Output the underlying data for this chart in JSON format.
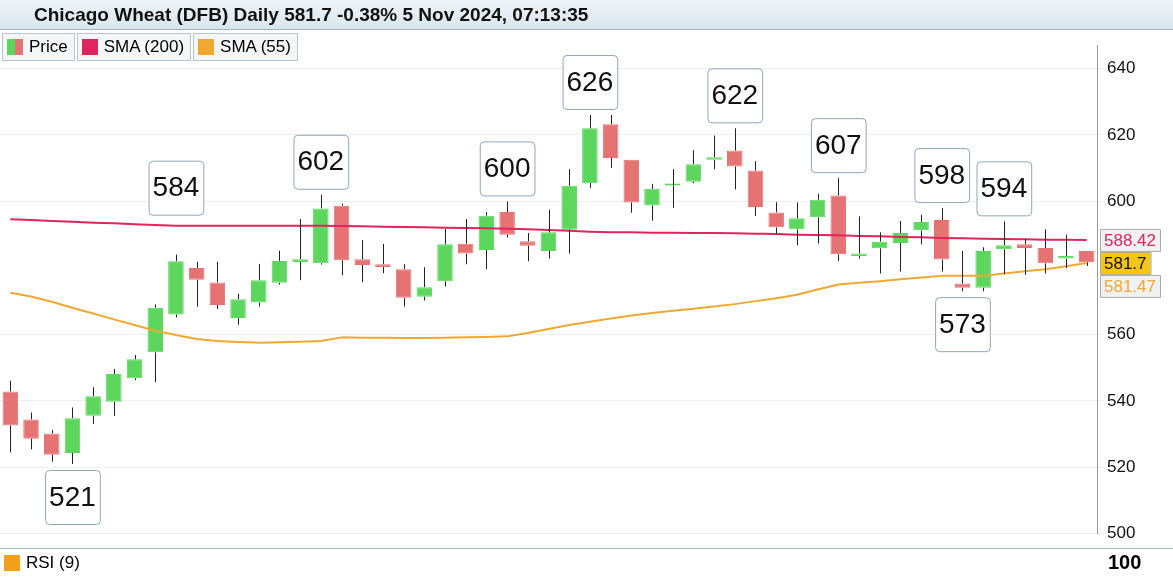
{
  "chart_data": {
    "type": "candlestick",
    "title": "Chicago Wheat (DFB) Daily 581.7 -0.38% 5 Nov 2024, 07:13:35",
    "categories": [
      null,
      null,
      null,
      null,
      null,
      null,
      null,
      null,
      null,
      null,
      null,
      null,
      null,
      null,
      null,
      null,
      null,
      null,
      null,
      null,
      null,
      null,
      null,
      null,
      null,
      null,
      null,
      null,
      null,
      null,
      null,
      null,
      null,
      null,
      null,
      null,
      null,
      null,
      null,
      null,
      null,
      null,
      null,
      null,
      null,
      null,
      null,
      null,
      null,
      null,
      null,
      null,
      null
    ],
    "series": [
      {
        "name": "Price",
        "value_labels": [
          null,
          null,
          null,
          null,
          null,
          null,
          null,
          null,
          null,
          null,
          null,
          null,
          null,
          null,
          null,
          null,
          null,
          null,
          null,
          null,
          null,
          null,
          null,
          null,
          null,
          null,
          null,
          null,
          null,
          null,
          null,
          null,
          null,
          null,
          null,
          null,
          null,
          null,
          null,
          null,
          null,
          null,
          null,
          null,
          null,
          null,
          null,
          null,
          null,
          null,
          null,
          null,
          "581.7"
        ],
        "ohlc": [
          [
            542.8,
            546.0,
            524.5,
            532.6
          ],
          [
            534.4,
            536.5,
            525.4,
            528.6
          ],
          [
            530.2,
            531.2,
            521.7,
            523.8
          ],
          [
            524.3,
            538.0,
            521,
            534.8
          ],
          [
            535.5,
            544.1,
            533.1,
            541.4
          ],
          [
            539.7,
            549.6,
            535.5,
            548.1
          ],
          [
            546.8,
            553.8,
            546.2,
            552.5
          ],
          [
            554.6,
            569.0,
            545.6,
            568.0
          ],
          [
            566.0,
            584,
            565.1,
            582.0
          ],
          [
            580.0,
            581.8,
            568.3,
            576.4
          ],
          [
            575.6,
            581.8,
            567.6,
            568.8
          ],
          [
            564.9,
            572.2,
            562.9,
            570.6
          ],
          [
            569.6,
            581.2,
            568.4,
            576.3
          ],
          [
            575.5,
            585.2,
            575,
            582.1
          ],
          [
            581.8,
            594.7,
            576.3,
            582.6
          ],
          [
            581.4,
            602,
            581,
            597.9
          ],
          [
            598.7,
            599.3,
            577.8,
            582.3
          ],
          [
            582.6,
            588.4,
            575.7,
            580.9
          ],
          [
            581.1,
            587.2,
            578.4,
            580.3
          ],
          [
            579.6,
            581.1,
            568.4,
            571.0
          ],
          [
            571.3,
            580.2,
            570.2,
            574.2
          ],
          [
            576.0,
            591.7,
            574.4,
            587.1
          ],
          [
            587.3,
            594.7,
            581.1,
            584.3
          ],
          [
            585.4,
            596.8,
            579.6,
            595.7
          ],
          [
            596.8,
            600,
            589.1,
            590.0
          ],
          [
            588.0,
            590.5,
            582.0,
            586.7
          ],
          [
            585.1,
            597.5,
            582.8,
            590.7
          ],
          [
            591.5,
            609.7,
            584.3,
            604.7
          ],
          [
            605.5,
            626,
            604.1,
            622.0
          ],
          [
            623.2,
            626,
            610.1,
            613.1
          ],
          [
            612.5,
            612.5,
            596.6,
            599.7
          ],
          [
            598.8,
            605.3,
            594.2,
            603.8
          ],
          [
            604.8,
            609.7,
            598.1,
            604.8
          ],
          [
            605.9,
            615.4,
            605.5,
            611.2
          ],
          [
            612.5,
            619.8,
            609.7,
            613.3
          ],
          [
            615.3,
            622,
            603.6,
            610.5
          ],
          [
            609.3,
            612.1,
            595.6,
            598.3
          ],
          [
            596.7,
            599.8,
            590.1,
            592.2
          ],
          [
            591.6,
            599.7,
            586.8,
            594.9
          ],
          [
            595.2,
            602.3,
            587.3,
            600.5
          ],
          [
            601.8,
            607,
            582.1,
            584.1
          ],
          [
            583.6,
            595.5,
            582.8,
            584.3
          ],
          [
            585.9,
            590.7,
            578.3,
            587.9
          ],
          [
            587.5,
            594.1,
            578.9,
            590.5
          ],
          [
            591.3,
            596.0,
            587.1,
            593.8
          ],
          [
            594.4,
            598,
            578.9,
            582.5
          ],
          [
            575.3,
            585.1,
            573,
            574
          ],
          [
            574,
            586.2,
            573,
            585.1
          ],
          [
            585.6,
            594,
            578.1,
            586.8
          ],
          [
            587.1,
            588.7,
            577.9,
            586.0
          ],
          [
            586.0,
            591.6,
            578.3,
            581.4
          ],
          [
            582.8,
            590.0,
            579.9,
            583.6
          ],
          [
            585.1,
            585.1,
            580.6,
            581.7
          ]
        ],
        "colors": [
          "#e57373",
          "#e57373",
          "#e57373",
          "#5cd65c",
          "#5cd65c",
          "#5cd65c",
          "#5cd65c",
          "#5cd65c",
          "#5cd65c",
          "#e57373",
          "#e57373",
          "#5cd65c",
          "#5cd65c",
          "#5cd65c",
          "#5cd65c",
          "#5cd65c",
          "#e57373",
          "#e57373",
          "#e57373",
          "#e57373",
          "#5cd65c",
          "#5cd65c",
          "#e57373",
          "#5cd65c",
          "#e57373",
          "#e57373",
          "#5cd65c",
          "#5cd65c",
          "#5cd65c",
          "#e57373",
          "#e57373",
          "#5cd65c",
          "#5cd65c",
          "#5cd65c",
          "#5cd65c",
          "#e57373",
          "#e57373",
          "#e57373",
          "#5cd65c",
          "#5cd65c",
          "#e57373",
          "#5cd65c",
          "#5cd65c",
          "#5cd65c",
          "#5cd65c",
          "#e57373",
          "#e57373",
          "#5cd65c",
          "#5cd65c",
          "#e57373",
          "#e57373",
          "#5cd65c",
          "#e57373"
        ]
      },
      {
        "name": "SMA (200)",
        "type": "line",
        "color": "#e0245e",
        "value_labels": [
          null,
          null,
          null,
          null,
          null,
          null,
          null,
          null,
          null,
          null,
          null,
          null,
          null,
          null,
          null,
          null,
          null,
          null,
          null,
          null,
          null,
          null,
          null,
          null,
          null,
          null,
          null,
          null,
          null,
          null,
          null,
          null,
          null,
          null,
          null,
          null,
          null,
          null,
          null,
          null,
          null,
          null,
          null,
          null,
          null,
          null,
          null,
          null,
          null,
          null,
          null,
          null,
          "588.42"
        ],
        "values": [
          594.6,
          594.4,
          594.1,
          593.9,
          593.6,
          593.4,
          593.1,
          592.9,
          592.7,
          592.7,
          592.7,
          592.7,
          592.7,
          592.7,
          592.7,
          592.7,
          592.6,
          592.5,
          592.4,
          592.3,
          592.2,
          592.1,
          592.0,
          591.9,
          591.8,
          591.6,
          591.4,
          591.2,
          590.9,
          590.7,
          590.7,
          590.6,
          590.6,
          590.5,
          590.5,
          590.4,
          590.3,
          590.2,
          590.0,
          589.9,
          589.8,
          589.6,
          589.5,
          589.3,
          589.2,
          589.0,
          588.9,
          588.8,
          588.7,
          588.6,
          588.5,
          588.5,
          588.42
        ]
      },
      {
        "name": "SMA (55)",
        "type": "line",
        "color": "#f0a830",
        "value_labels": [
          null,
          null,
          null,
          null,
          null,
          null,
          null,
          null,
          null,
          null,
          null,
          null,
          null,
          null,
          null,
          null,
          null,
          null,
          null,
          null,
          null,
          null,
          null,
          null,
          null,
          null,
          null,
          null,
          null,
          null,
          null,
          null,
          null,
          null,
          null,
          null,
          null,
          null,
          null,
          null,
          null,
          null,
          null,
          null,
          null,
          null,
          null,
          null,
          null,
          null,
          null,
          null,
          "581.47"
        ],
        "values": [
          572.5,
          571.4,
          569.8,
          568.0,
          566.3,
          564.5,
          562.8,
          561.1,
          559.8,
          558.6,
          558.0,
          557.7,
          557.5,
          557.6,
          557.8,
          558.0,
          559.1,
          559.0,
          559.0,
          558.9,
          558.9,
          559.0,
          559.1,
          559.2,
          559.4,
          560.4,
          561.6,
          562.8,
          563.8,
          564.8,
          565.7,
          566.4,
          567.1,
          567.7,
          568.4,
          569.1,
          570.0,
          570.9,
          571.9,
          573.5,
          575.0,
          575.5,
          576.0,
          576.6,
          577.1,
          577.6,
          577.6,
          577.6,
          578.3,
          579.0,
          579.6,
          580.5,
          581.47
        ]
      }
    ],
    "ylim": [
      500,
      647
    ],
    "yticks": [
      500,
      520,
      540,
      560,
      600,
      620,
      640
    ],
    "tick_labels": "y",
    "grid": "y",
    "legend": "top left",
    "marker": "none",
    "line_style": "solid",
    "annotations": [
      {
        "text": "521",
        "y": 521
      },
      {
        "text": "584",
        "y": 584
      },
      {
        "text": "602",
        "y": 602
      },
      {
        "text": "600",
        "y": 600
      },
      {
        "text": "626",
        "y": 626
      },
      {
        "text": "622",
        "y": 622
      },
      {
        "text": "607",
        "y": 607
      },
      {
        "text": "598",
        "y": 598
      },
      {
        "text": "594",
        "y": 594
      },
      {
        "text": "573",
        "y": 573
      },
      "RSI (9)",
      "100"
    ]
  }
}
